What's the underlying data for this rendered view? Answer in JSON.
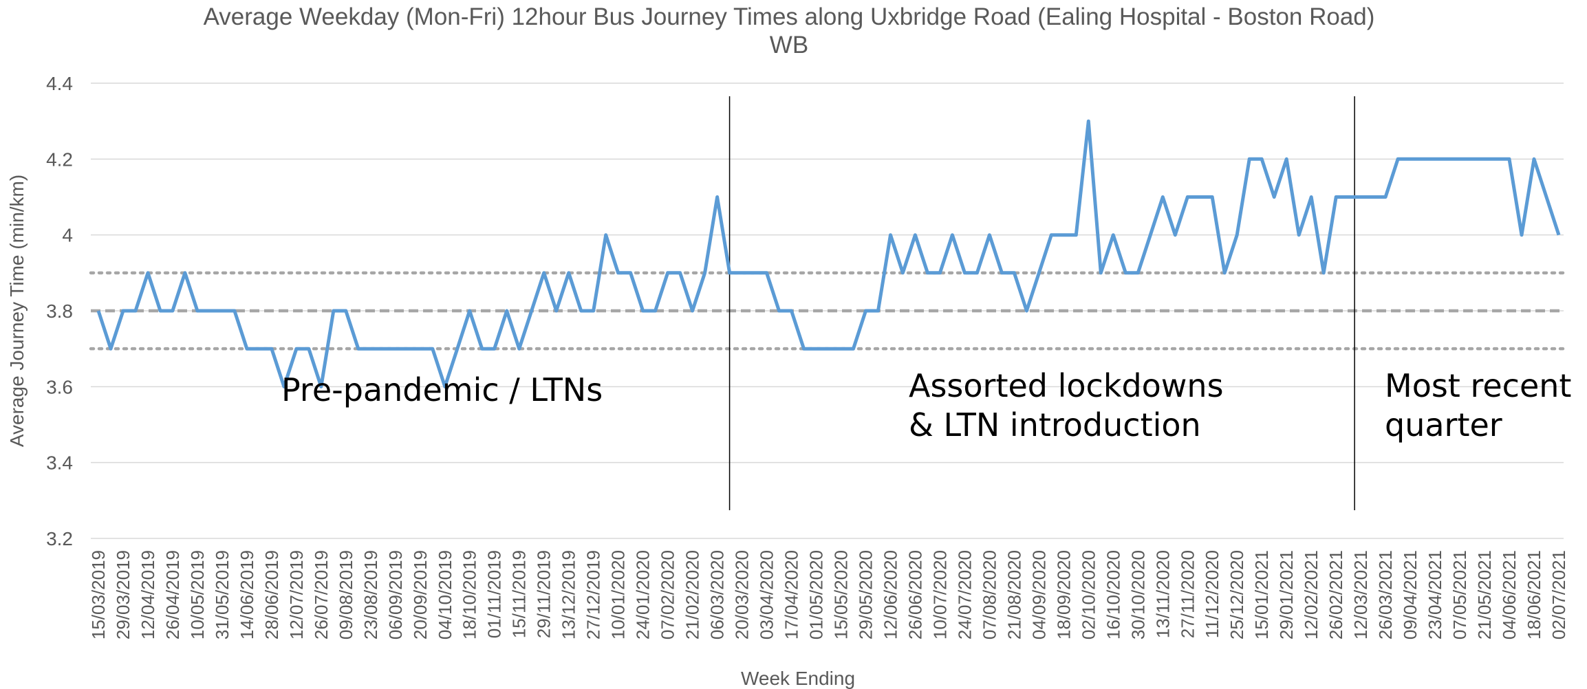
{
  "chart_data": {
    "type": "line",
    "title": [
      "Average Weekday (Mon-Fri) 12hour Bus Journey Times along Uxbridge Road (Ealing Hospital - Boston Road)",
      "WB"
    ],
    "x_label": "Week Ending",
    "y_label": "Average Journey Time (min/km)",
    "categories": [
      "15/03/2019",
      null,
      "29/03/2019",
      null,
      "12/04/2019",
      null,
      "26/04/2019",
      null,
      "10/05/2019",
      null,
      "31/05/2019",
      null,
      "14/06/2019",
      null,
      "28/06/2019",
      null,
      "12/07/2019",
      null,
      "26/07/2019",
      null,
      "09/08/2019",
      null,
      "23/08/2019",
      null,
      "06/09/2019",
      null,
      "20/09/2019",
      null,
      "04/10/2019",
      null,
      "18/10/2019",
      null,
      "01/11/2019",
      null,
      "15/11/2019",
      null,
      "29/11/2019",
      null,
      "13/12/2019",
      null,
      "27/12/2019",
      null,
      "10/01/2020",
      null,
      "24/01/2020",
      null,
      "07/02/2020",
      null,
      "21/02/2020",
      null,
      "06/03/2020",
      null,
      "20/03/2020",
      null,
      "03/04/2020",
      null,
      "17/04/2020",
      null,
      "01/05/2020",
      null,
      "15/05/2020",
      null,
      "29/05/2020",
      null,
      "12/06/2020",
      null,
      "26/06/2020",
      null,
      "10/07/2020",
      null,
      "24/07/2020",
      null,
      "07/08/2020",
      null,
      "21/08/2020",
      null,
      "04/09/2020",
      null,
      "18/09/2020",
      null,
      "02/10/2020",
      null,
      "16/10/2020",
      null,
      "30/10/2020",
      null,
      "13/11/2020",
      null,
      "27/11/2020",
      null,
      "11/12/2020",
      null,
      "25/12/2020",
      null,
      "15/01/2021",
      null,
      "29/01/2021",
      null,
      "12/02/2021",
      null,
      "26/02/2021",
      null,
      "12/03/2021",
      null,
      "26/03/2021",
      null,
      "09/04/2021",
      null,
      "23/04/2021",
      null,
      "07/05/2021",
      null,
      "21/05/2021",
      null,
      "04/06/2021",
      null,
      "18/06/2021",
      null,
      "02/07/2021"
    ],
    "series": [
      {
        "color": "#5b9bd5",
        "values": [
          3.8,
          3.7,
          3.8,
          3.8,
          3.9,
          3.8,
          3.8,
          3.9,
          3.8,
          3.8,
          3.8,
          3.8,
          3.7,
          3.7,
          3.7,
          3.6,
          3.7,
          3.7,
          3.6,
          3.8,
          3.8,
          3.7,
          3.7,
          3.7,
          3.7,
          3.7,
          3.7,
          3.7,
          3.6,
          3.7,
          3.8,
          3.7,
          3.7,
          3.8,
          3.7,
          3.8,
          3.9,
          3.8,
          3.9,
          3.8,
          3.8,
          4.0,
          3.9,
          3.9,
          3.8,
          3.8,
          3.9,
          3.9,
          3.8,
          3.9,
          4.1,
          3.9,
          3.9,
          3.9,
          3.9,
          3.8,
          3.8,
          3.7,
          3.7,
          3.7,
          3.7,
          3.7,
          3.8,
          3.8,
          4.0,
          3.9,
          4.0,
          3.9,
          3.9,
          4.0,
          3.9,
          3.9,
          4.0,
          3.9,
          3.9,
          3.8,
          3.9,
          4.0,
          4.0,
          4.0,
          4.3,
          3.9,
          4.0,
          3.9,
          3.9,
          4.0,
          4.1,
          4.0,
          4.1,
          4.1,
          4.1,
          3.9,
          4.0,
          4.2,
          4.2,
          4.1,
          4.2,
          4.0,
          4.1,
          3.9,
          4.1,
          4.1,
          4.1,
          4.1,
          4.1,
          4.2,
          4.2,
          4.2,
          4.2,
          4.2,
          4.2,
          4.2,
          4.2,
          4.2,
          4.2,
          4.0,
          4.2,
          4.1,
          4.0
        ]
      }
    ],
    "reference_lines": [
      {
        "value": 3.8,
        "style": "dashed",
        "color": "#a6a6a6"
      },
      {
        "value": 3.7,
        "style": "dotted",
        "color": "#a6a6a6"
      },
      {
        "value": 3.9,
        "style": "dotted",
        "color": "#a6a6a6"
      }
    ],
    "dividers": [
      51,
      101.5
    ],
    "annotations": [
      [
        "Pre-pandemic / LTNs"
      ],
      [
        "Assorted lockdowns",
        "& LTN introduction"
      ],
      [
        "Most recent",
        "quarter"
      ]
    ],
    "ylim": [
      3.2,
      4.4
    ],
    "yticks": [
      3.2,
      3.4,
      3.6,
      3.8,
      4,
      4.2,
      4.4
    ],
    "grid": true
  }
}
